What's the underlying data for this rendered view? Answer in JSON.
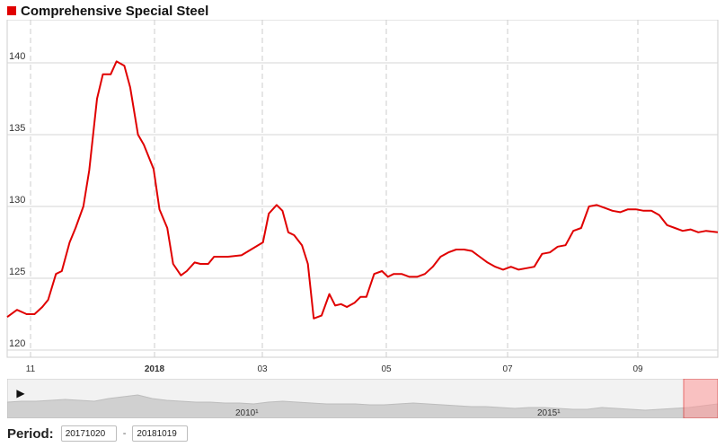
{
  "title": "Comprehensive Special Steel",
  "accent_color": "#e00000",
  "period": {
    "label": "Period:",
    "start": "20171020",
    "separator": "-",
    "end": "20181019"
  },
  "navigator": {
    "play_icon": "play-icon",
    "labels": [
      "2010¹",
      "2015¹"
    ]
  },
  "chart_data": {
    "type": "line",
    "title": "Comprehensive Special Steel",
    "xlabel": "",
    "ylabel": "",
    "x_ticks": [
      "11",
      "2018",
      "03",
      "05",
      "07",
      "09"
    ],
    "y_ticks": [
      120,
      125,
      130,
      135,
      140
    ],
    "ylim": [
      119.5,
      143
    ],
    "grid": true,
    "series": [
      {
        "color": "#e00000",
        "x": [
          "2017-10-20",
          "2017-10-25",
          "2017-10-30",
          "2017-11-03",
          "2017-11-07",
          "2017-11-10",
          "2017-11-14",
          "2017-11-17",
          "2017-11-21",
          "2017-11-24",
          "2017-11-28",
          "2017-12-01",
          "2017-12-05",
          "2017-12-08",
          "2017-12-12",
          "2017-12-15",
          "2017-12-19",
          "2017-12-22",
          "2017-12-26",
          "2017-12-29",
          "2018-01-03",
          "2018-01-06",
          "2018-01-10",
          "2018-01-13",
          "2018-01-17",
          "2018-01-20",
          "2018-01-24",
          "2018-01-27",
          "2018-01-31",
          "2018-02-03",
          "2018-02-07",
          "2018-02-10",
          "2018-02-17",
          "2018-02-28",
          "2018-03-03",
          "2018-03-07",
          "2018-03-10",
          "2018-03-13",
          "2018-03-16",
          "2018-03-20",
          "2018-03-23",
          "2018-03-26",
          "2018-03-30",
          "2018-04-03",
          "2018-04-06",
          "2018-04-09",
          "2018-04-12",
          "2018-04-16",
          "2018-04-19",
          "2018-04-22",
          "2018-04-26",
          "2018-04-30",
          "2018-05-03",
          "2018-05-06",
          "2018-05-10",
          "2018-05-14",
          "2018-05-18",
          "2018-05-22",
          "2018-05-26",
          "2018-05-30",
          "2018-06-03",
          "2018-06-07",
          "2018-06-11",
          "2018-06-15",
          "2018-06-19",
          "2018-06-23",
          "2018-06-27",
          "2018-07-01",
          "2018-07-05",
          "2018-07-09",
          "2018-07-13",
          "2018-07-17",
          "2018-07-21",
          "2018-07-25",
          "2018-07-29",
          "2018-08-02",
          "2018-08-06",
          "2018-08-10",
          "2018-08-14",
          "2018-08-18",
          "2018-08-22",
          "2018-08-26",
          "2018-08-30",
          "2018-09-03",
          "2018-09-07",
          "2018-09-11",
          "2018-09-15",
          "2018-09-19",
          "2018-09-23",
          "2018-09-27",
          "2018-10-01",
          "2018-10-05",
          "2018-10-09",
          "2018-10-13",
          "2018-10-19"
        ],
        "y": [
          122.3,
          122.8,
          122.5,
          122.5,
          123.0,
          123.5,
          125.3,
          125.5,
          127.5,
          128.5,
          130.0,
          132.5,
          137.5,
          139.2,
          139.2,
          140.1,
          139.8,
          138.3,
          135.0,
          134.3,
          132.6,
          129.8,
          128.5,
          126.0,
          125.2,
          125.5,
          126.1,
          126.0,
          126.0,
          126.5,
          126.5,
          126.5,
          126.6,
          127.5,
          129.5,
          130.1,
          129.7,
          128.2,
          128.0,
          127.3,
          126.0,
          122.2,
          122.4,
          123.9,
          123.1,
          123.2,
          123.0,
          123.3,
          123.7,
          123.7,
          125.3,
          125.5,
          125.1,
          125.3,
          125.3,
          125.1,
          125.1,
          125.3,
          125.8,
          126.5,
          126.8,
          127.0,
          127.0,
          126.9,
          126.5,
          126.1,
          125.8,
          125.6,
          125.8,
          125.6,
          125.7,
          125.8,
          126.7,
          126.8,
          127.2,
          127.3,
          128.3,
          128.5,
          130.0,
          130.1,
          129.9,
          129.7,
          129.6,
          129.8,
          129.8,
          129.7,
          129.7,
          129.4,
          128.7,
          128.5,
          128.3,
          128.4,
          128.2,
          128.3,
          128.2
        ]
      }
    ]
  }
}
